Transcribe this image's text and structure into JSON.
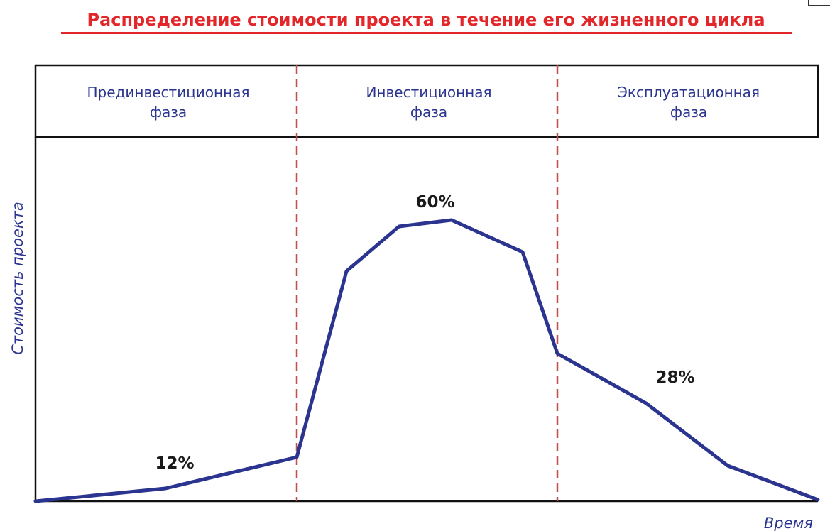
{
  "title": "Распределение стоимости проекта в течение его жизненного цикла",
  "phases": [
    {
      "line1": "Прединвестиционная",
      "line2": "фаза",
      "percent": "12%"
    },
    {
      "line1": "Инвестиционная",
      "line2": "фаза",
      "percent": "60%"
    },
    {
      "line1": "Эксплуатационная",
      "line2": "фаза",
      "percent": "28%"
    }
  ],
  "axes": {
    "ylabel": "Стоимость проекта",
    "xlabel": "Время"
  },
  "colors": {
    "title": "#e3262a",
    "curve": "#2b3590",
    "phase_divider": "#c0504d",
    "labels": "#2b3590"
  }
}
